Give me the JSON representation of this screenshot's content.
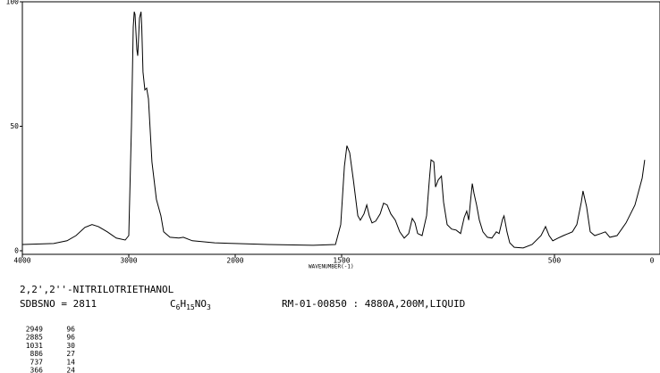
{
  "chart_data": {
    "type": "line",
    "x_label": "WAVENUMBER(-1)",
    "xlim": [
      4000,
      0
    ],
    "xscale": {
      "type": "piecewise",
      "break": 2000,
      "ratio": 2
    },
    "xticks": [
      4000,
      3000,
      2000,
      1500,
      500,
      0
    ],
    "ylim": [
      0,
      100
    ],
    "yticks": [
      0,
      50,
      100
    ],
    "color": "#000000",
    "x": [
      4000,
      3706,
      3580,
      3496,
      3412,
      3345,
      3286,
      3202,
      3118,
      3034,
      3000,
      2975,
      2958,
      2949,
      2941,
      2924,
      2916,
      2899,
      2885,
      2878,
      2866,
      2849,
      2832,
      2815,
      2782,
      2740,
      2698,
      2672,
      2613,
      2529,
      2487,
      2403,
      2193,
      2000,
      1845,
      1634,
      1529,
      1504,
      1487,
      1475,
      1462,
      1445,
      1424,
      1412,
      1395,
      1382,
      1370,
      1357,
      1340,
      1319,
      1303,
      1286,
      1269,
      1248,
      1227,
      1206,
      1185,
      1168,
      1155,
      1143,
      1122,
      1101,
      1088,
      1080,
      1067,
      1059,
      1046,
      1031,
      1021,
      1004,
      983,
      962,
      941,
      924,
      912,
      903,
      895,
      886,
      878,
      866,
      853,
      836,
      815,
      794,
      773,
      760,
      744,
      737,
      723,
      710,
      689,
      647,
      605,
      563,
      542,
      525,
      508,
      483,
      458,
      416,
      395,
      374,
      366,
      349,
      332,
      311,
      282,
      261,
      240,
      206,
      164,
      122,
      88,
      76
    ],
    "values": [
      2.5,
      2.9,
      4.0,
      6.1,
      9.4,
      10.5,
      9.7,
      7.6,
      5.1,
      4.3,
      6.1,
      50.2,
      89.9,
      96,
      94.9,
      80.9,
      78.3,
      93.5,
      96,
      90,
      71.8,
      64.6,
      65.3,
      61.0,
      35.7,
      20.6,
      14.1,
      7.6,
      5.4,
      5.1,
      5.4,
      4.0,
      3.2,
      2.9,
      2.5,
      2.2,
      2.5,
      10.5,
      33.9,
      42.2,
      39.4,
      28.5,
      14.1,
      12.3,
      14.8,
      18.4,
      14.1,
      11.2,
      11.9,
      14.8,
      19.1,
      18.4,
      14.8,
      12.3,
      7.6,
      5.1,
      6.9,
      13.0,
      11.2,
      6.9,
      6.1,
      14.1,
      28.5,
      36.5,
      35.7,
      25.6,
      28.5,
      30,
      19.5,
      10.5,
      8.7,
      8.3,
      6.9,
      13.4,
      15.9,
      12.3,
      19.5,
      27,
      23.1,
      18.4,
      12.3,
      7.6,
      5.4,
      5.1,
      7.6,
      6.9,
      12.6,
      14,
      7.6,
      3.2,
      1.4,
      1.1,
      2.5,
      6.1,
      9.7,
      6.1,
      4.0,
      5.1,
      6.1,
      7.6,
      10.5,
      19.5,
      24,
      17.7,
      7.6,
      6.1,
      6.9,
      7.6,
      5.4,
      6.1,
      11.2,
      18.4,
      29.2,
      36.5
    ]
  },
  "compound": {
    "name": "2,2',2''-NITRILOTRIETHANOL",
    "sdbs": "SDBSNO = 2811",
    "formula": [
      "C",
      "6",
      "H",
      "15",
      "NO",
      "3"
    ],
    "conditions": "RM-01-00850 : 4880A,200M,LIQUID"
  },
  "peak_table": {
    "rows": [
      [
        2949,
        96
      ],
      [
        2885,
        96
      ],
      [
        1031,
        30
      ],
      [
        886,
        27
      ],
      [
        737,
        14
      ],
      [
        366,
        24
      ]
    ]
  }
}
